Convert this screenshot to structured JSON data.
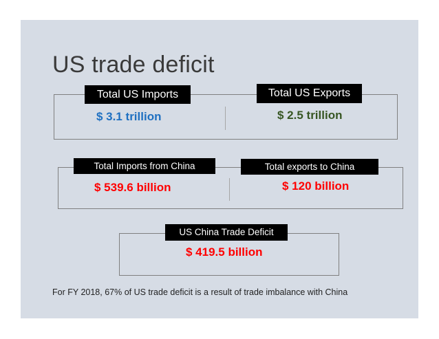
{
  "title": "US trade deficit",
  "us_totals": {
    "imports_label": "Total US Imports",
    "imports_value": "$ 3.1 trillion",
    "exports_label": "Total US Exports",
    "exports_value": "$ 2.5 trillion"
  },
  "china_totals": {
    "imports_label": "Total Imports from China",
    "imports_value": "$ 539.6 billion",
    "exports_label": "Total exports to China",
    "exports_value": "$ 120 billion"
  },
  "deficit": {
    "label": "US China Trade Deficit",
    "value": "$ 419.5 billion"
  },
  "footnote": "For FY 2018, 67% of US trade deficit is a result of trade imbalance with China",
  "colors": {
    "slide_background": "#d6dce5",
    "us_imports_value": "#1f70c1",
    "us_exports_value": "#375623",
    "china_values": "#ff0000",
    "label_background": "#000000",
    "label_text": "#ffffff"
  }
}
